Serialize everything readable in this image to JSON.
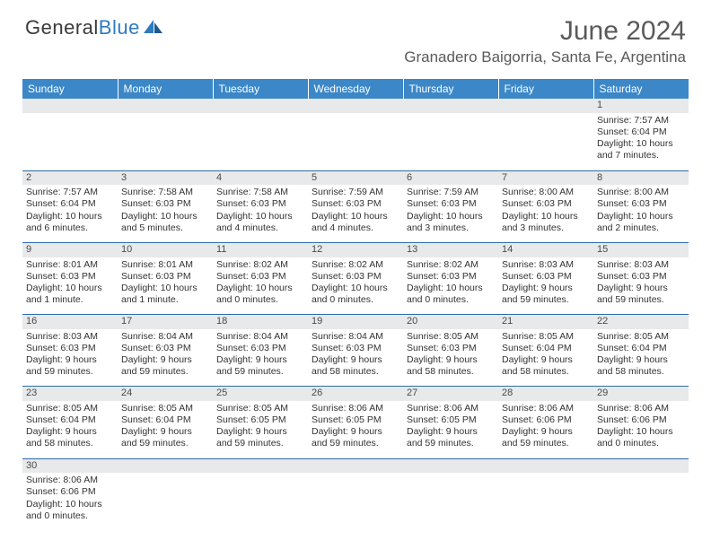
{
  "logo": {
    "text1": "General",
    "text2": "Blue"
  },
  "title": "June 2024",
  "location": "Granadero Baigorria, Santa Fe, Argentina",
  "headers": [
    "Sunday",
    "Monday",
    "Tuesday",
    "Wednesday",
    "Thursday",
    "Friday",
    "Saturday"
  ],
  "colors": {
    "header_bg": "#3b87c8",
    "header_text": "#ffffff",
    "daynum_bg": "#e8e9ea",
    "cell_border": "#2e6da8",
    "text": "#333333",
    "logo_blue": "#2e7bc0"
  },
  "weeks": [
    [
      null,
      null,
      null,
      null,
      null,
      null,
      {
        "n": "1",
        "sr": "7:57 AM",
        "ss": "6:04 PM",
        "dl": "10 hours and 7 minutes."
      }
    ],
    [
      {
        "n": "2",
        "sr": "7:57 AM",
        "ss": "6:04 PM",
        "dl": "10 hours and 6 minutes."
      },
      {
        "n": "3",
        "sr": "7:58 AM",
        "ss": "6:03 PM",
        "dl": "10 hours and 5 minutes."
      },
      {
        "n": "4",
        "sr": "7:58 AM",
        "ss": "6:03 PM",
        "dl": "10 hours and 4 minutes."
      },
      {
        "n": "5",
        "sr": "7:59 AM",
        "ss": "6:03 PM",
        "dl": "10 hours and 4 minutes."
      },
      {
        "n": "6",
        "sr": "7:59 AM",
        "ss": "6:03 PM",
        "dl": "10 hours and 3 minutes."
      },
      {
        "n": "7",
        "sr": "8:00 AM",
        "ss": "6:03 PM",
        "dl": "10 hours and 3 minutes."
      },
      {
        "n": "8",
        "sr": "8:00 AM",
        "ss": "6:03 PM",
        "dl": "10 hours and 2 minutes."
      }
    ],
    [
      {
        "n": "9",
        "sr": "8:01 AM",
        "ss": "6:03 PM",
        "dl": "10 hours and 1 minute."
      },
      {
        "n": "10",
        "sr": "8:01 AM",
        "ss": "6:03 PM",
        "dl": "10 hours and 1 minute."
      },
      {
        "n": "11",
        "sr": "8:02 AM",
        "ss": "6:03 PM",
        "dl": "10 hours and 0 minutes."
      },
      {
        "n": "12",
        "sr": "8:02 AM",
        "ss": "6:03 PM",
        "dl": "10 hours and 0 minutes."
      },
      {
        "n": "13",
        "sr": "8:02 AM",
        "ss": "6:03 PM",
        "dl": "10 hours and 0 minutes."
      },
      {
        "n": "14",
        "sr": "8:03 AM",
        "ss": "6:03 PM",
        "dl": "9 hours and 59 minutes."
      },
      {
        "n": "15",
        "sr": "8:03 AM",
        "ss": "6:03 PM",
        "dl": "9 hours and 59 minutes."
      }
    ],
    [
      {
        "n": "16",
        "sr": "8:03 AM",
        "ss": "6:03 PM",
        "dl": "9 hours and 59 minutes."
      },
      {
        "n": "17",
        "sr": "8:04 AM",
        "ss": "6:03 PM",
        "dl": "9 hours and 59 minutes."
      },
      {
        "n": "18",
        "sr": "8:04 AM",
        "ss": "6:03 PM",
        "dl": "9 hours and 59 minutes."
      },
      {
        "n": "19",
        "sr": "8:04 AM",
        "ss": "6:03 PM",
        "dl": "9 hours and 58 minutes."
      },
      {
        "n": "20",
        "sr": "8:05 AM",
        "ss": "6:03 PM",
        "dl": "9 hours and 58 minutes."
      },
      {
        "n": "21",
        "sr": "8:05 AM",
        "ss": "6:04 PM",
        "dl": "9 hours and 58 minutes."
      },
      {
        "n": "22",
        "sr": "8:05 AM",
        "ss": "6:04 PM",
        "dl": "9 hours and 58 minutes."
      }
    ],
    [
      {
        "n": "23",
        "sr": "8:05 AM",
        "ss": "6:04 PM",
        "dl": "9 hours and 58 minutes."
      },
      {
        "n": "24",
        "sr": "8:05 AM",
        "ss": "6:04 PM",
        "dl": "9 hours and 59 minutes."
      },
      {
        "n": "25",
        "sr": "8:05 AM",
        "ss": "6:05 PM",
        "dl": "9 hours and 59 minutes."
      },
      {
        "n": "26",
        "sr": "8:06 AM",
        "ss": "6:05 PM",
        "dl": "9 hours and 59 minutes."
      },
      {
        "n": "27",
        "sr": "8:06 AM",
        "ss": "6:05 PM",
        "dl": "9 hours and 59 minutes."
      },
      {
        "n": "28",
        "sr": "8:06 AM",
        "ss": "6:06 PM",
        "dl": "9 hours and 59 minutes."
      },
      {
        "n": "29",
        "sr": "8:06 AM",
        "ss": "6:06 PM",
        "dl": "10 hours and 0 minutes."
      }
    ],
    [
      {
        "n": "30",
        "sr": "8:06 AM",
        "ss": "6:06 PM",
        "dl": "10 hours and 0 minutes."
      },
      null,
      null,
      null,
      null,
      null,
      null
    ]
  ],
  "labels": {
    "sunrise": "Sunrise: ",
    "sunset": "Sunset: ",
    "daylight": "Daylight: "
  }
}
